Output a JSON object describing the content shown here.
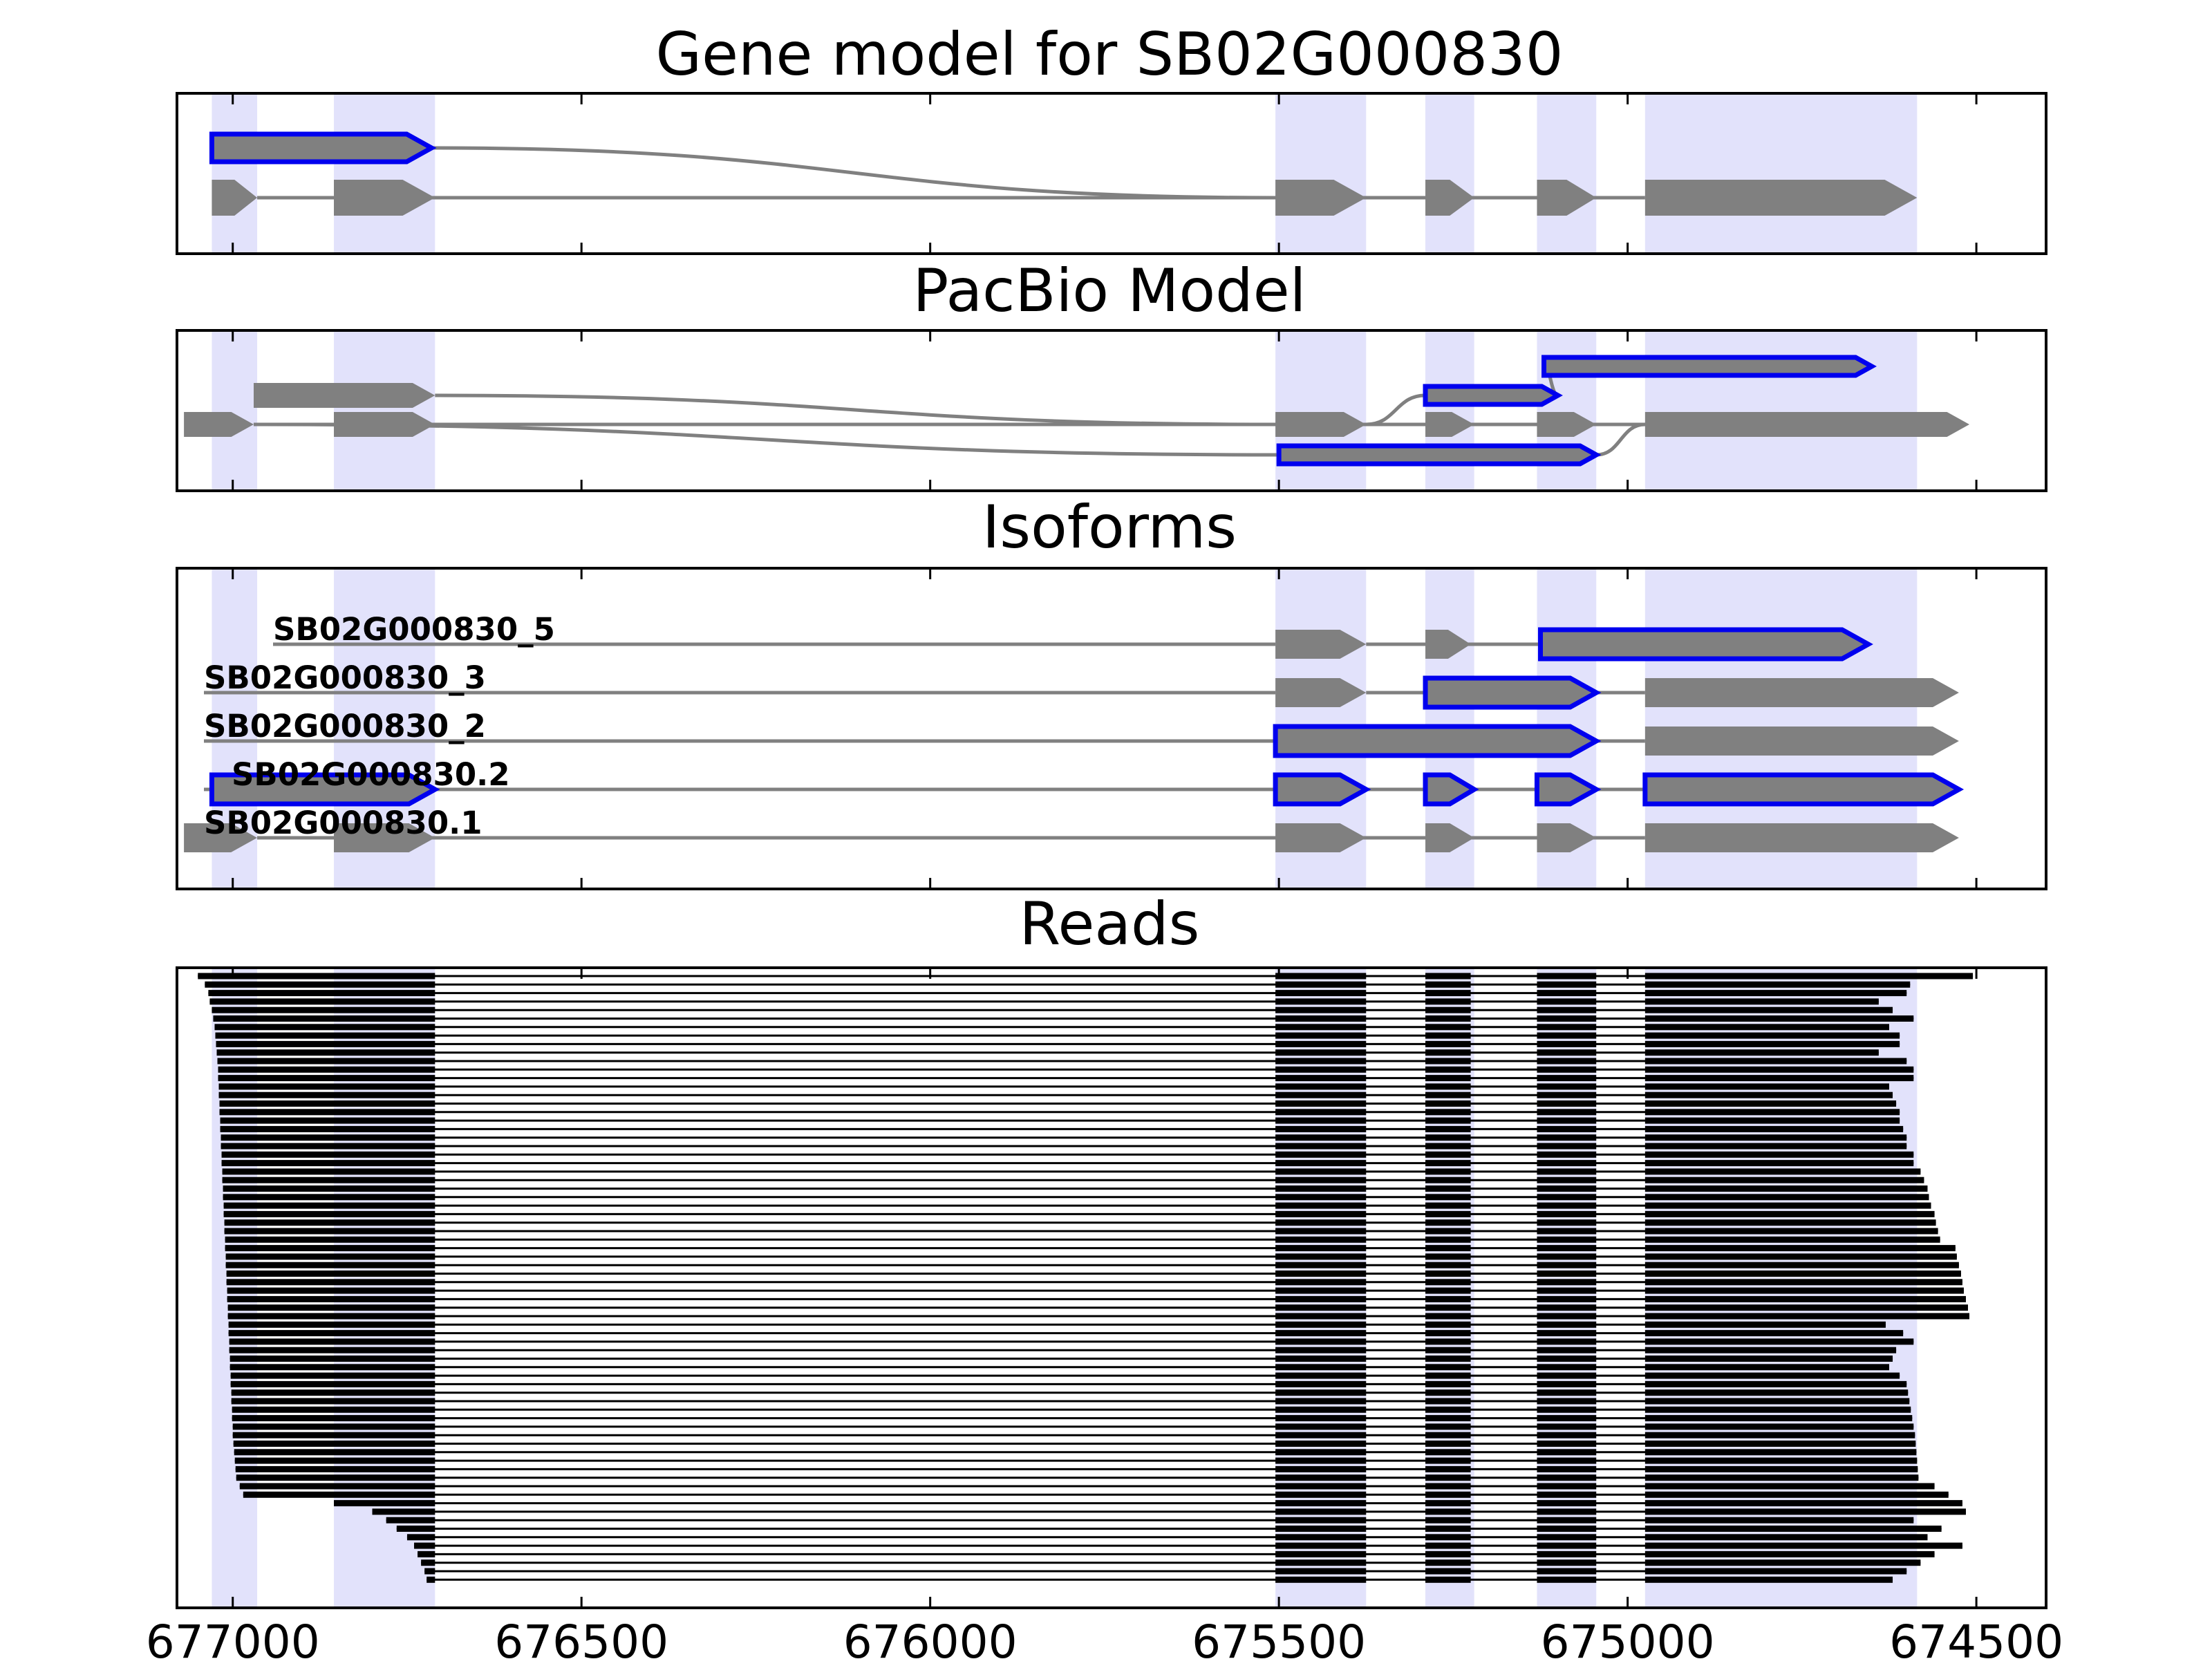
{
  "colors": {
    "highlight": "#e2e2fb",
    "exon": "#808080",
    "selected_outline": "#0000ee",
    "read": "#000000",
    "axis": "#000000"
  },
  "chart_data": [
    {
      "id": "gene",
      "type": "gene-model",
      "title": "Gene model for SB02G000830",
      "xlim": [
        677080,
        674400
      ],
      "transcripts": [
        {
          "label": "",
          "selected": true,
          "exons": [
            [
              677030,
              676715
            ]
          ]
        },
        {
          "label": "",
          "selected": false,
          "exons": [
            [
              677030,
              676965
            ],
            [
              676855,
              676710
            ],
            [
              675505,
              675375
            ],
            [
              675290,
              675220
            ],
            [
              675130,
              675045
            ],
            [
              674975,
              674585
            ]
          ]
        }
      ]
    },
    {
      "id": "pacbio",
      "type": "gene-model",
      "title": "PacBio Model",
      "xlim": [
        677080,
        674400
      ],
      "transcripts": [
        {
          "label": "",
          "selected": true,
          "exons": [
            [
              675120,
              674650
            ]
          ]
        },
        {
          "label": "",
          "selected": false,
          "exons": [
            [
              676970,
              676710
            ]
          ]
        },
        {
          "label": "",
          "selected": true,
          "exons": [
            [
              675290,
              675100
            ]
          ]
        },
        {
          "label": "",
          "selected": false,
          "exons": [
            [
              677070,
              676970
            ],
            [
              676855,
              676710
            ],
            [
              675505,
              675375
            ],
            [
              675290,
              675220
            ],
            [
              675130,
              675045
            ],
            [
              674975,
              674510
            ]
          ]
        },
        {
          "label": "",
          "selected": true,
          "exons": [
            [
              675500,
              675045
            ]
          ]
        }
      ]
    },
    {
      "id": "isoforms",
      "type": "gene-model",
      "title": "Isoforms",
      "xlim": [
        677080,
        674400
      ],
      "transcripts": [
        {
          "label": "SB02G000830_5",
          "selected": false,
          "exons": [
            [
              675505,
              675375
            ],
            [
              675290,
              675225
            ],
            [
              675125,
              674655
            ]
          ],
          "highlight_exon": 2
        },
        {
          "label": "SB02G000830_3",
          "selected": false,
          "exons": [
            [
              675505,
              675375
            ],
            [
              675290,
              675045
            ],
            [
              674975,
              674525
            ]
          ],
          "highlight_exon": 1
        },
        {
          "label": "SB02G000830_2",
          "selected": false,
          "exons": [
            [
              675505,
              675045
            ],
            [
              674975,
              674525
            ]
          ],
          "highlight_exon": 0
        },
        {
          "label": "SB02G000830.2",
          "selected": true,
          "exons": [
            [
              677030,
              676710
            ],
            [
              675505,
              675375
            ],
            [
              675290,
              675220
            ],
            [
              675130,
              675045
            ],
            [
              674975,
              674525
            ]
          ]
        },
        {
          "label": "SB02G000830.1",
          "selected": false,
          "exons": [
            [
              677070,
              676965
            ],
            [
              676855,
              676710
            ],
            [
              675505,
              675375
            ],
            [
              675290,
              675220
            ],
            [
              675130,
              675045
            ],
            [
              674975,
              674525
            ]
          ]
        }
      ]
    },
    {
      "id": "reads",
      "type": "reads",
      "title": "Reads",
      "xlim": [
        677080,
        674400
      ],
      "xticks": [
        677000,
        676500,
        676000,
        675500,
        675000,
        674500
      ],
      "xtick_labels": [
        "677000",
        "676500",
        "676000",
        "675500",
        "675000",
        "674500"
      ],
      "read_count": 72,
      "read_exons": [
        [
          675505,
          675375
        ],
        [
          675290,
          675225
        ],
        [
          675130,
          675045
        ]
      ],
      "first_exon_end": 676710,
      "last_exon_start": 674975,
      "read_starts": [
        677050,
        677040,
        677035,
        677033,
        677030,
        677028,
        677026,
        677025,
        677024,
        677023,
        677022,
        677021,
        677021,
        677020,
        677020,
        677019,
        677019,
        677018,
        677018,
        677017,
        677017,
        677016,
        677016,
        677015,
        677015,
        677014,
        677014,
        677013,
        677013,
        677012,
        677012,
        677011,
        677011,
        677010,
        677010,
        677009,
        677009,
        677008,
        677008,
        677007,
        677007,
        677006,
        677006,
        677005,
        677005,
        677004,
        677004,
        677003,
        677003,
        677002,
        677002,
        677001,
        677001,
        677000,
        677000,
        676999,
        676998,
        676997,
        676996,
        676995,
        676990,
        676985,
        676855,
        676800,
        676780,
        676765,
        676750,
        676740,
        676735,
        676730,
        676725,
        676722
      ],
      "read_ends": [
        674505,
        674595,
        674600,
        674640,
        674620,
        674590,
        674625,
        674610,
        674610,
        674640,
        674600,
        674590,
        674590,
        674625,
        674620,
        674615,
        674610,
        674610,
        674605,
        674600,
        674600,
        674590,
        674590,
        674580,
        674575,
        674570,
        674568,
        674565,
        674560,
        674558,
        674555,
        674552,
        674530,
        674528,
        674525,
        674522,
        674520,
        674518,
        674515,
        674512,
        674510,
        674630,
        674605,
        674590,
        674615,
        674620,
        674625,
        674610,
        674600,
        674598,
        674596,
        674594,
        674592,
        674590,
        674588,
        674587,
        674586,
        674585,
        674584,
        674583,
        674560,
        674540,
        674520,
        674515,
        674590,
        674550,
        674570,
        674520,
        674560,
        674580,
        674600,
        674620
      ]
    }
  ]
}
